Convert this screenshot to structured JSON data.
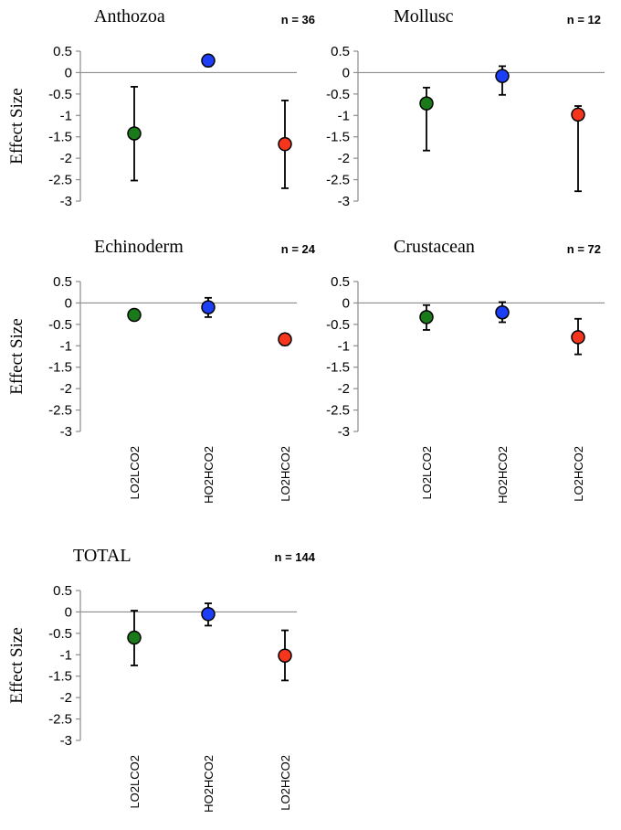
{
  "chart_data": [
    {
      "type": "scatter",
      "title": "Anthozoa",
      "n_label": "n = 36",
      "ylabel": "Effect Size",
      "show_ylabel": true,
      "show_xticks": false,
      "ylim": [
        -3,
        0.5
      ],
      "yticks": [
        0.5,
        0,
        -0.5,
        -1,
        -1.5,
        -2,
        -2.5,
        -3
      ],
      "ytick_labels": [
        "0.5",
        "0",
        "-0.5",
        "-1",
        "-1.5",
        "-2",
        "-2.5",
        "-3"
      ],
      "categories": [
        "LO2LCO2",
        "HO2HCO2",
        "LO2HCO2"
      ],
      "points": [
        {
          "category": "LO2LCO2",
          "value": -1.42,
          "err_low": -2.52,
          "err_high": -0.33,
          "color": "#1a7a1a"
        },
        {
          "category": "HO2HCO2",
          "value": 0.28,
          "err_low": 0.15,
          "err_high": 0.4,
          "color": "#1c3ff5"
        },
        {
          "category": "LO2HCO2",
          "value": -1.67,
          "err_low": -2.7,
          "err_high": -0.65,
          "color": "#f5361c"
        }
      ]
    },
    {
      "type": "scatter",
      "title": "Mollusc",
      "n_label": "n = 12",
      "ylabel": "",
      "show_ylabel": false,
      "show_xticks": false,
      "ylim": [
        -3,
        0.5
      ],
      "yticks": [
        0.5,
        0,
        -0.5,
        -1,
        -1.5,
        -2,
        -2.5,
        -3
      ],
      "ytick_labels": [
        "0.5",
        "0",
        "-0.5",
        "-1",
        "-1.5",
        "-2",
        "-2.5",
        "-3"
      ],
      "categories": [
        "LO2LCO2",
        "HO2HCO2",
        "LO2HCO2"
      ],
      "points": [
        {
          "category": "LO2LCO2",
          "value": -0.72,
          "err_low": -1.82,
          "err_high": -0.35,
          "color": "#1a7a1a"
        },
        {
          "category": "HO2HCO2",
          "value": -0.08,
          "err_low": -0.52,
          "err_high": 0.15,
          "color": "#1c3ff5"
        },
        {
          "category": "LO2HCO2",
          "value": -0.98,
          "err_low": -2.77,
          "err_high": -0.78,
          "color": "#f5361c"
        }
      ]
    },
    {
      "type": "scatter",
      "title": "Echinoderm",
      "n_label": "n = 24",
      "ylabel": "Effect Size",
      "show_ylabel": true,
      "show_xticks": true,
      "ylim": [
        -3,
        0.5
      ],
      "yticks": [
        0.5,
        0,
        -0.5,
        -1,
        -1.5,
        -2,
        -2.5,
        -3
      ],
      "ytick_labels": [
        "0.5",
        "0",
        "-0.5",
        "-1",
        "-1.5",
        "-2",
        "-2.5",
        "-3"
      ],
      "categories": [
        "LO2LCO2",
        "HO2HCO2",
        "LO2HCO2"
      ],
      "points": [
        {
          "category": "LO2LCO2",
          "value": -0.28,
          "err_low": -0.28,
          "err_high": -0.28,
          "color": "#1a7a1a"
        },
        {
          "category": "HO2HCO2",
          "value": -0.1,
          "err_low": -0.33,
          "err_high": 0.12,
          "color": "#1c3ff5"
        },
        {
          "category": "LO2HCO2",
          "value": -0.85,
          "err_low": -0.98,
          "err_high": -0.72,
          "color": "#f5361c"
        }
      ]
    },
    {
      "type": "scatter",
      "title": "Crustacean",
      "n_label": "n = 72",
      "ylabel": "",
      "show_ylabel": false,
      "show_xticks": true,
      "ylim": [
        -3,
        0.5
      ],
      "yticks": [
        0.5,
        0,
        -0.5,
        -1,
        -1.5,
        -2,
        -2.5,
        -3
      ],
      "ytick_labels": [
        "0.5",
        "0",
        "-0.5",
        "-1",
        "-1.5",
        "-2",
        "-2.5",
        "-3"
      ],
      "categories": [
        "LO2LCO2",
        "HO2HCO2",
        "LO2HCO2"
      ],
      "points": [
        {
          "category": "LO2LCO2",
          "value": -0.33,
          "err_low": -0.63,
          "err_high": -0.05,
          "color": "#1a7a1a"
        },
        {
          "category": "HO2HCO2",
          "value": -0.22,
          "err_low": -0.45,
          "err_high": 0.02,
          "color": "#1c3ff5"
        },
        {
          "category": "LO2HCO2",
          "value": -0.8,
          "err_low": -1.2,
          "err_high": -0.37,
          "color": "#f5361c"
        }
      ]
    },
    {
      "type": "scatter",
      "title": "TOTAL",
      "n_label": "n = 144",
      "ylabel": "Effect Size",
      "show_ylabel": true,
      "show_xticks": true,
      "ylim": [
        -3,
        0.5
      ],
      "yticks": [
        0.5,
        0,
        -0.5,
        -1,
        -1.5,
        -2,
        -2.5,
        -3
      ],
      "ytick_labels": [
        "0.5",
        "0",
        "-0.5",
        "-1",
        "-1.5",
        "-2",
        "-2.5",
        "-3"
      ],
      "categories": [
        "LO2LCO2",
        "HO2HCO2",
        "LO2HCO2"
      ],
      "points": [
        {
          "category": "LO2LCO2",
          "value": -0.6,
          "err_low": -1.25,
          "err_high": 0.03,
          "color": "#1a7a1a"
        },
        {
          "category": "HO2HCO2",
          "value": -0.05,
          "err_low": -0.32,
          "err_high": 0.2,
          "color": "#1c3ff5"
        },
        {
          "category": "LO2HCO2",
          "value": -1.02,
          "err_low": -1.6,
          "err_high": -0.43,
          "color": "#f5361c"
        }
      ]
    }
  ]
}
